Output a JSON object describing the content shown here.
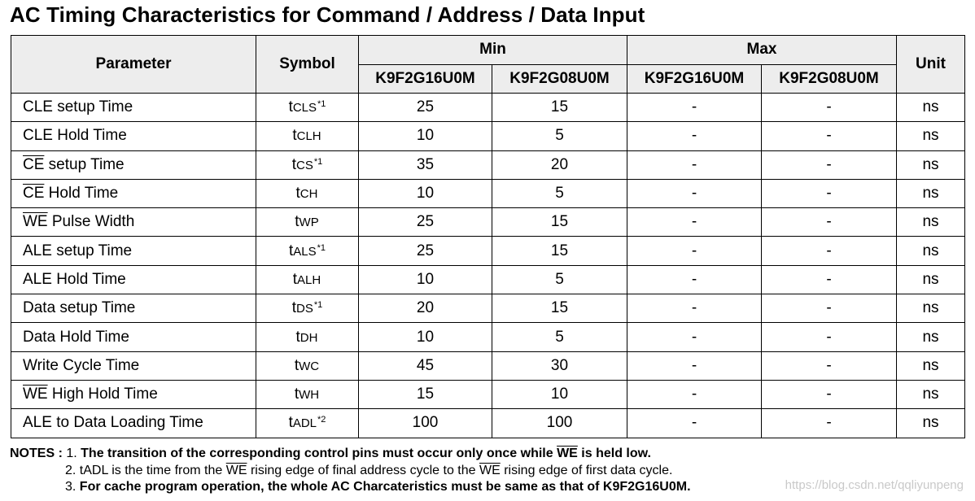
{
  "title": "AC Timing Characteristics for Command / Address / Data Input",
  "headers": {
    "parameter": "Parameter",
    "symbol": "Symbol",
    "min": "Min",
    "max": "Max",
    "unit": "Unit",
    "part_a": "K9F2G16U0M",
    "part_b": "K9F2G08U0M"
  },
  "rows": [
    {
      "param_overline": "",
      "param_rest": "CLE setup Time",
      "sym_t": "t",
      "sym_sub": "CLS",
      "sym_sup": "*1",
      "min_a": "25",
      "min_b": "15",
      "max_a": "-",
      "max_b": "-",
      "unit": "ns"
    },
    {
      "param_overline": "",
      "param_rest": "CLE Hold Time",
      "sym_t": "t",
      "sym_sub": "CLH",
      "sym_sup": "",
      "min_a": "10",
      "min_b": "5",
      "max_a": "-",
      "max_b": "-",
      "unit": "ns"
    },
    {
      "param_overline": "CE",
      "param_rest": " setup Time",
      "sym_t": "t",
      "sym_sub": "CS",
      "sym_sup": "*1",
      "min_a": "35",
      "min_b": "20",
      "max_a": "-",
      "max_b": "-",
      "unit": "ns"
    },
    {
      "param_overline": "CE",
      "param_rest": " Hold Time",
      "sym_t": "t",
      "sym_sub": "CH",
      "sym_sup": "",
      "min_a": "10",
      "min_b": "5",
      "max_a": "-",
      "max_b": "-",
      "unit": "ns"
    },
    {
      "param_overline": "WE",
      "param_rest": " Pulse Width",
      "sym_t": "t",
      "sym_sub": "WP",
      "sym_sup": "",
      "min_a": "25",
      "min_b": "15",
      "max_a": "-",
      "max_b": "-",
      "unit": "ns"
    },
    {
      "param_overline": "",
      "param_rest": "ALE setup Time",
      "sym_t": "t",
      "sym_sub": "ALS",
      "sym_sup": "*1",
      "min_a": "25",
      "min_b": "15",
      "max_a": "-",
      "max_b": "-",
      "unit": "ns"
    },
    {
      "param_overline": "",
      "param_rest": "ALE Hold Time",
      "sym_t": "t",
      "sym_sub": "ALH",
      "sym_sup": "",
      "min_a": "10",
      "min_b": "5",
      "max_a": "-",
      "max_b": "-",
      "unit": "ns"
    },
    {
      "param_overline": "",
      "param_rest": "Data setup Time",
      "sym_t": "t",
      "sym_sub": "DS",
      "sym_sup": "*1",
      "min_a": "20",
      "min_b": "15",
      "max_a": "-",
      "max_b": "-",
      "unit": "ns"
    },
    {
      "param_overline": "",
      "param_rest": "Data Hold Time",
      "sym_t": "t",
      "sym_sub": "DH",
      "sym_sup": "",
      "min_a": "10",
      "min_b": "5",
      "max_a": "-",
      "max_b": "-",
      "unit": "ns"
    },
    {
      "param_overline": "",
      "param_rest": "Write Cycle Time",
      "sym_t": "t",
      "sym_sub": "WC",
      "sym_sup": "",
      "min_a": "45",
      "min_b": "30",
      "max_a": "-",
      "max_b": "-",
      "unit": "ns"
    },
    {
      "param_overline": "WE",
      "param_rest": " High Hold Time",
      "sym_t": "t",
      "sym_sub": "WH",
      "sym_sup": "",
      "min_a": "15",
      "min_b": "10",
      "max_a": "-",
      "max_b": "-",
      "unit": "ns"
    },
    {
      "param_overline": "",
      "param_rest": "ALE to Data Loading Time",
      "sym_t": "t",
      "sym_sub": "ADL",
      "sym_sup": "*2",
      "min_a": "100",
      "min_b": "100",
      "max_a": "-",
      "max_b": "-",
      "unit": "ns"
    }
  ],
  "notes": {
    "label": "NOTES : ",
    "n1_num": "1. ",
    "n1_a": "The transition of the corresponding control pins must occur only once while ",
    "n1_over": "WE",
    "n1_b": "  is held low.",
    "n2_num": "2. ",
    "n2_a": "tADL is the time from the ",
    "n2_over1": "WE",
    "n2_b": " rising edge of final address cycle to the ",
    "n2_over2": "WE",
    "n2_c": " rising edge of first data cycle.",
    "n3_num": "3. ",
    "n3_a": "For cache program operation, the whole AC Charcateristics must be same as that of K9F2G16U0M."
  },
  "watermark": "https://blog.csdn.net/qqliyunpeng"
}
